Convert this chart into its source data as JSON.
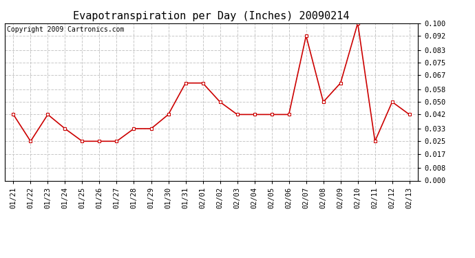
{
  "title": "Evapotranspiration per Day (Inches) 20090214",
  "copyright": "Copyright 2009 Cartronics.com",
  "x_labels": [
    "01/21",
    "01/22",
    "01/23",
    "01/24",
    "01/25",
    "01/26",
    "01/27",
    "01/28",
    "01/29",
    "01/30",
    "01/31",
    "02/01",
    "02/02",
    "02/03",
    "02/04",
    "02/05",
    "02/06",
    "02/07",
    "02/08",
    "02/09",
    "02/10",
    "02/11",
    "02/12",
    "02/13"
  ],
  "y_values": [
    0.042,
    0.025,
    0.042,
    0.033,
    0.025,
    0.025,
    0.025,
    0.033,
    0.033,
    0.042,
    0.062,
    0.062,
    0.05,
    0.042,
    0.042,
    0.042,
    0.042,
    0.092,
    0.05,
    0.062,
    0.1,
    0.025,
    0.05,
    0.042
  ],
  "y_ticks": [
    0.0,
    0.008,
    0.017,
    0.025,
    0.033,
    0.042,
    0.05,
    0.058,
    0.067,
    0.075,
    0.083,
    0.092,
    0.1
  ],
  "line_color": "#cc0000",
  "marker": "s",
  "marker_size": 3,
  "background_color": "#ffffff",
  "plot_bg_color": "#ffffff",
  "grid_color": "#c8c8c8",
  "title_fontsize": 11,
  "copyright_fontsize": 7,
  "tick_fontsize": 7.5,
  "ylim": [
    0.0,
    0.1
  ]
}
